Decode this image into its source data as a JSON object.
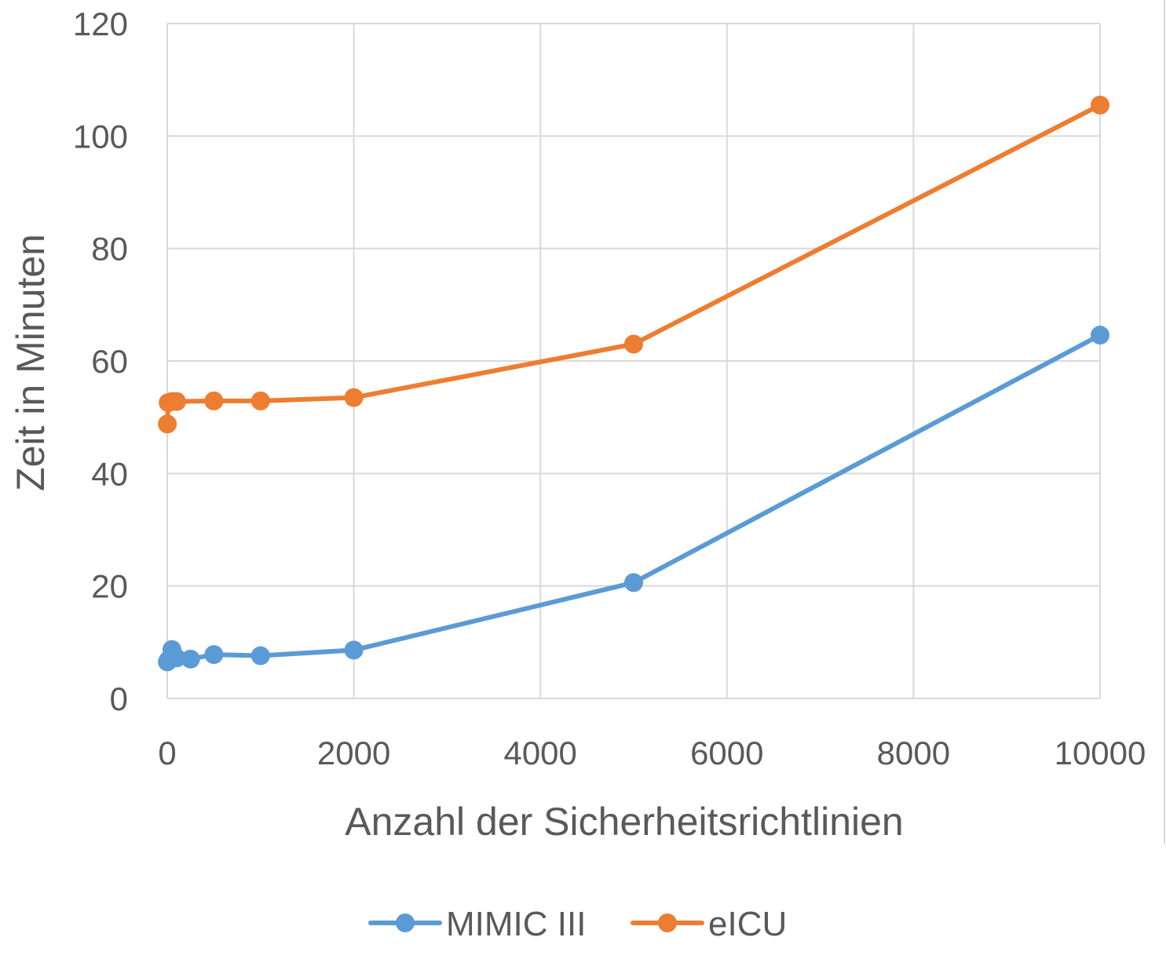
{
  "chart_data": {
    "type": "line",
    "title": "",
    "xlabel": "Anzahl der Sicherheitsrichtlinien",
    "ylabel": "Zeit in Minuten",
    "xlim": [
      0,
      10000
    ],
    "ylim": [
      0,
      120
    ],
    "xticks": [
      "0",
      "2000",
      "4000",
      "6000",
      "8000",
      "10000"
    ],
    "yticks": [
      "0",
      "20",
      "40",
      "60",
      "80",
      "100",
      "120"
    ],
    "grid": true,
    "legend_position": "bottom",
    "series": [
      {
        "name": "MIMIC III",
        "color": "#5b9bd5",
        "x": [
          1,
          10,
          50,
          100,
          250,
          500,
          1000,
          2000,
          5000,
          10000
        ],
        "y": [
          6.5,
          6.8,
          8.7,
          7.2,
          7.0,
          7.8,
          7.6,
          8.6,
          20.6,
          64.6
        ]
      },
      {
        "name": "eICU",
        "color": "#ed7d31",
        "x": [
          1,
          10,
          50,
          100,
          500,
          1000,
          2000,
          5000,
          10000
        ],
        "y": [
          48.8,
          52.6,
          52.8,
          52.8,
          52.9,
          52.9,
          53.5,
          63.0,
          105.5
        ]
      }
    ]
  }
}
